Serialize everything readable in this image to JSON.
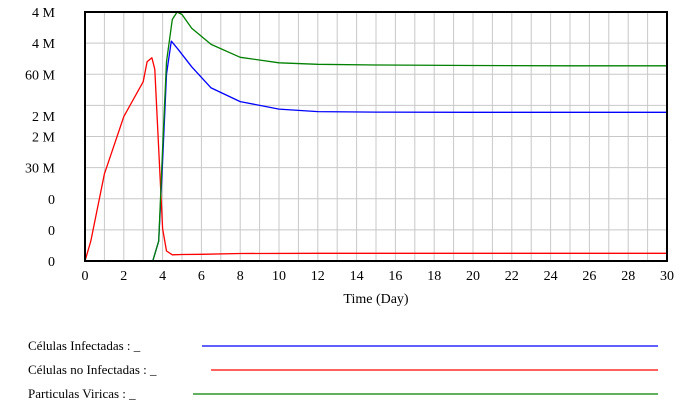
{
  "chart_data": {
    "type": "line",
    "xlabel": "Time (Day)",
    "ylabel": "",
    "xlim": [
      0,
      30
    ],
    "xticks": [
      0,
      2,
      4,
      6,
      8,
      10,
      12,
      14,
      16,
      18,
      20,
      22,
      24,
      26,
      28,
      30
    ],
    "x_tick_labels": [
      "0",
      "2",
      "4",
      "6",
      "8",
      "10",
      "12",
      "14",
      "16",
      "18",
      "20",
      "22",
      "24",
      "26",
      "28",
      "30"
    ],
    "y_axis_labels": [
      {
        "text": "4 M",
        "level": 1.0
      },
      {
        "text": "4 M",
        "level": 0.875
      },
      {
        "text": "60 M",
        "level": 0.75
      },
      {
        "text": "2 M",
        "level": 0.5833
      },
      {
        "text": "2 M",
        "level": 0.5
      },
      {
        "text": "30 M",
        "level": 0.375
      },
      {
        "text": "0",
        "level": 0.25
      },
      {
        "text": "0",
        "level": 0.125
      },
      {
        "text": "0",
        "level": 0.0
      }
    ],
    "grid": true,
    "legend_position": "bottom",
    "series": [
      {
        "name": "Células Infectadas : _",
        "color": "#0000ff",
        "x": [
          0,
          3.5,
          3.8,
          4.0,
          4.2,
          4.45,
          4.8,
          5.5,
          6.5,
          8,
          10,
          12,
          15,
          20,
          25,
          30
        ],
        "y": [
          0,
          0.002,
          0.08,
          0.4,
          0.75,
          0.883,
          0.85,
          0.78,
          0.695,
          0.64,
          0.61,
          0.6,
          0.598,
          0.597,
          0.597,
          0.597
        ]
      },
      {
        "name": "Células no Infectadas : _",
        "color": "#ff0000",
        "x": [
          0,
          0.3,
          1.0,
          2.0,
          3.0,
          3.2,
          3.45,
          3.6,
          3.8,
          4.0,
          4.2,
          4.5,
          5,
          6,
          8,
          12,
          30
        ],
        "y": [
          0,
          0.08,
          0.35,
          0.58,
          0.72,
          0.8,
          0.816,
          0.77,
          0.45,
          0.13,
          0.04,
          0.025,
          0.026,
          0.027,
          0.03,
          0.031,
          0.031
        ]
      },
      {
        "name": "Particulas Viricas : _",
        "color": "#008000",
        "x": [
          0,
          3.5,
          3.8,
          4.0,
          4.2,
          4.5,
          4.75,
          5.0,
          5.5,
          6.5,
          8,
          10,
          12,
          15,
          20,
          25,
          30
        ],
        "y": [
          0,
          0.002,
          0.08,
          0.45,
          0.8,
          0.97,
          1.0,
          0.99,
          0.935,
          0.87,
          0.818,
          0.796,
          0.79,
          0.787,
          0.785,
          0.784,
          0.784
        ]
      }
    ]
  }
}
